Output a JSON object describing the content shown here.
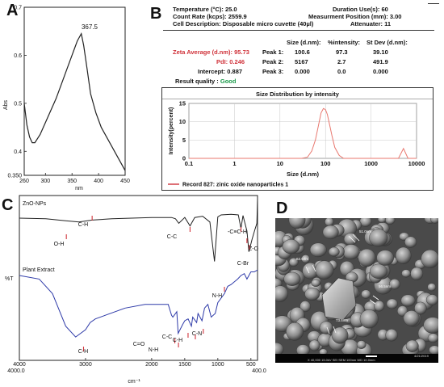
{
  "panels": {
    "a": "A",
    "b": "B",
    "c": "C",
    "d": "D"
  },
  "chart_a": {
    "type": "line",
    "ylabel": "Abs",
    "xlabel": "nm",
    "yticks": [
      "0.7",
      "0.6",
      "0.5",
      "0.4",
      "0.350"
    ],
    "xticks": [
      "260",
      "300",
      "350",
      "400",
      "450"
    ],
    "peak_label": "367.5"
  },
  "chart_data": [
    {
      "type": "line",
      "title": "",
      "xlabel": "nm",
      "ylabel": "Abs",
      "xlim": [
        260,
        450
      ],
      "ylim": [
        0.35,
        0.7
      ],
      "series": [
        {
          "x": [
            260,
            265,
            270,
            275,
            280,
            290,
            300,
            310,
            320,
            330,
            340,
            350,
            355,
            360,
            367.5,
            372,
            378,
            385,
            395,
            405,
            420,
            435,
            450
          ],
          "values": [
            0.5,
            0.455,
            0.43,
            0.418,
            0.418,
            0.435,
            0.46,
            0.485,
            0.51,
            0.54,
            0.57,
            0.6,
            0.615,
            0.63,
            0.645,
            0.62,
            0.575,
            0.52,
            0.48,
            0.45,
            0.42,
            0.39,
            0.36
          ]
        }
      ]
    },
    {
      "type": "line",
      "title": "Size Distribution by intensity",
      "xlabel": "Size (d.nm)",
      "ylabel": "Intensity(percent)",
      "xscale": "log",
      "xlim": [
        0.1,
        10000
      ],
      "ylim": [
        0,
        15
      ],
      "series": [
        {
          "name": "Record 827: zinic oxide nanoparticles 1",
          "x": [
            30,
            40,
            50,
            60,
            70,
            80,
            90,
            100,
            110,
            120,
            140,
            160,
            200,
            250,
            4000,
            5167,
            6500
          ],
          "values": [
            0,
            0.3,
            2,
            5,
            9,
            12.4,
            13.6,
            13.3,
            12,
            9.8,
            6,
            3,
            0.8,
            0,
            0,
            2.7,
            0
          ]
        }
      ]
    },
    {
      "type": "line",
      "title": "",
      "xlabel": "cm-1",
      "ylabel": "%T",
      "xlim": [
        4000,
        400
      ],
      "series": [
        {
          "name": "ZnO-NPs",
          "x": [
            4000,
            3600,
            3300,
            3100,
            2900,
            2600,
            2300,
            2000,
            1700,
            1640,
            1590,
            1500,
            1420,
            1350,
            1230,
            1120,
            1050,
            1000,
            950,
            800,
            690,
            650,
            620,
            560,
            530,
            480,
            440,
            410,
            400
          ],
          "values": [
            70,
            69,
            66,
            64,
            67,
            69,
            70,
            71,
            71,
            69,
            62,
            71,
            58,
            71,
            73,
            64,
            3,
            72,
            75,
            76,
            75,
            54,
            74,
            50,
            18,
            38,
            52,
            62,
            100
          ]
        },
        {
          "name": "Plant Extract",
          "x": [
            4000,
            3700,
            3500,
            3300,
            3150,
            3000,
            2930,
            2850,
            2700,
            2400,
            2100,
            1900,
            1750,
            1700,
            1680,
            1620,
            1600,
            1530,
            1500,
            1450,
            1400,
            1380,
            1320,
            1300,
            1240,
            1200,
            1150,
            1100,
            1040,
            1000,
            900,
            850,
            800,
            700,
            650,
            600,
            560,
            500,
            450,
            400
          ],
          "values": [
            46,
            44,
            36,
            18,
            12,
            16,
            20,
            22,
            24,
            28,
            30,
            30,
            30,
            24,
            23,
            26,
            14,
            19,
            21,
            22,
            18,
            23,
            20,
            25,
            21,
            28,
            30,
            23,
            25,
            31,
            36,
            40,
            41,
            44,
            46,
            47,
            44,
            48,
            48,
            49
          ]
        }
      ]
    }
  ],
  "chart_b": {
    "temperature_label": "Temperature (°C):",
    "temperature_value": "25.0",
    "count_rate_label": "Count Rate (kcps):",
    "count_rate_value": "2559.9",
    "cell_label": "Cell Description:",
    "cell_value": "Disposable micro cuvette (40µl)",
    "duration_label": "Duration Use(s):",
    "duration_value": "60",
    "measurement_label": "Measurment Position (mm):",
    "measurement_value": "3.00",
    "attenuator_label": "Attenuater:",
    "attenuator_value": "11",
    "col_size": "Size (d.nm):",
    "col_intensity": "%intensity:",
    "col_stdev": "St Dev (d.nm):",
    "zeta_label": "Zeta Average (d.nm):",
    "zeta_value": "95.73",
    "pdi_label": "PdI:",
    "pdi_value": "0.246",
    "intercept_label": "Intercept:",
    "intercept_value": "0.887",
    "quality_label": "Result quality :",
    "quality_value": "Good",
    "peaks": [
      {
        "label": "Peak 1:",
        "size": "100.6",
        "intensity": "97.3",
        "stdev": "39.10"
      },
      {
        "label": "Peak 2:",
        "size": "5167",
        "intensity": "2.7",
        "stdev": "491.9"
      },
      {
        "label": "Peak 3:",
        "size": "0.000",
        "intensity": "0.0",
        "stdev": "0.000"
      }
    ],
    "plot_title": "Size Distribution by intensity",
    "ylabel": "Intensity(percent)",
    "xlabel": "Size (d.nm)",
    "yticks": [
      "15",
      "10",
      "5",
      "0"
    ],
    "xticks": [
      "0.1",
      "1",
      "10",
      "100",
      "1000",
      "10000"
    ],
    "legend": "Record 827: zinic oxide nanoparticles 1",
    "line_color": "#e8776e"
  },
  "chart_c": {
    "series1_label": "ZnO-NPs",
    "series2_label": "Plant Extract",
    "ylabel": "%T",
    "xlabel": "cm⁻¹",
    "xticks": [
      "4000.0",
      "4000",
      "3000",
      "2000",
      "1500",
      "1000",
      "500",
      "400.0"
    ],
    "top_annotations": [
      "O-H",
      "C-H",
      "C-C",
      "-C≡C-H",
      "Z-O",
      "C-Br"
    ],
    "bottom_annotations": [
      "C-H",
      "C=O",
      "N-H",
      "C-C",
      "C-H",
      "C-N",
      "N-H"
    ],
    "top_color": "#222222",
    "bottom_color": "#2e3aa8",
    "marker_color": "#d0323a"
  },
  "sem": {
    "measurements": [
      "51.0nm",
      "62.5nm",
      "56.5nm",
      "73.5nm"
    ],
    "footer": "X 40,000   15.0kV  SEI   SEM   100nm   WD 10.0mm",
    "date": "4/21/2019"
  }
}
